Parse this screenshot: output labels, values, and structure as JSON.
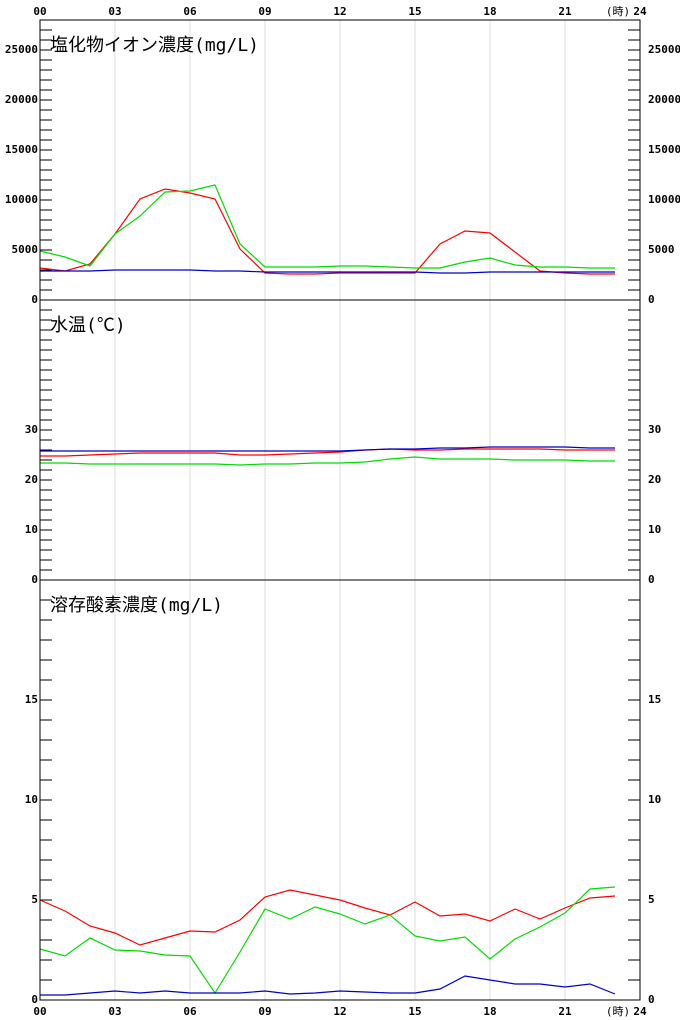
{
  "x_axis": {
    "xlim": [
      0,
      24
    ],
    "xticks": [
      {
        "value": 0,
        "label": "00"
      },
      {
        "value": 3,
        "label": "03"
      },
      {
        "value": 6,
        "label": "06"
      },
      {
        "value": 9,
        "label": "09"
      },
      {
        "value": 12,
        "label": "12"
      },
      {
        "value": 15,
        "label": "15"
      },
      {
        "value": 18,
        "label": "18"
      },
      {
        "value": 21,
        "label": "21"
      },
      {
        "value": 24,
        "label": "24"
      }
    ],
    "unit": "(時)",
    "grid": true
  },
  "chart_data": [
    {
      "type": "line",
      "title": "塩化物イオン濃度(mg/L)",
      "x": [
        0,
        1,
        2,
        3,
        4,
        5,
        6,
        7,
        8,
        9,
        10,
        11,
        12,
        13,
        14,
        15,
        16,
        17,
        18,
        19,
        20,
        21,
        22,
        23
      ],
      "ylim": [
        0,
        28000
      ],
      "yticks": [
        0,
        5000,
        10000,
        15000,
        20000,
        25000
      ],
      "minor_ytick_step": 1000,
      "series": [
        {
          "color": "#ff0000",
          "values": [
            3200,
            2900,
            3600,
            6600,
            10100,
            11100,
            10700,
            10100,
            5100,
            2700,
            2600,
            2600,
            2700,
            2700,
            2700,
            2700,
            5600,
            6900,
            6700,
            4800,
            2900,
            2700,
            2600,
            2600
          ]
        },
        {
          "color": "#00dd00",
          "values": [
            4900,
            4300,
            3400,
            6600,
            8400,
            10800,
            10900,
            11500,
            5600,
            3300,
            3300,
            3300,
            3400,
            3400,
            3300,
            3200,
            3200,
            3800,
            4200,
            3500,
            3300,
            3300,
            3200,
            3200
          ]
        },
        {
          "color": "#0000cc",
          "values": [
            2900,
            2900,
            2900,
            3000,
            3000,
            3000,
            3000,
            2900,
            2900,
            2800,
            2800,
            2800,
            2800,
            2800,
            2800,
            2800,
            2700,
            2700,
            2800,
            2800,
            2800,
            2800,
            2800,
            2800
          ]
        }
      ]
    },
    {
      "type": "line",
      "title": "水温(℃)",
      "x": [
        0,
        1,
        2,
        3,
        4,
        5,
        6,
        7,
        8,
        9,
        10,
        11,
        12,
        13,
        14,
        15,
        16,
        17,
        18,
        19,
        20,
        21,
        22,
        23
      ],
      "ylim": [
        0,
        56
      ],
      "yticks": [
        0,
        10,
        20,
        30
      ],
      "minor_ytick_step": 2,
      "series": [
        {
          "color": "#ff0000",
          "values": [
            24.8,
            24.8,
            25,
            25.2,
            25.4,
            25.4,
            25.4,
            25.4,
            25,
            25,
            25.2,
            25.4,
            25.6,
            26,
            26.2,
            26,
            26,
            26.2,
            26.2,
            26.2,
            26.2,
            26,
            26,
            26
          ]
        },
        {
          "color": "#00dd00",
          "values": [
            23.4,
            23.4,
            23.2,
            23.2,
            23.2,
            23.2,
            23.2,
            23.2,
            23,
            23.2,
            23.2,
            23.4,
            23.4,
            23.6,
            24.2,
            24.6,
            24.2,
            24.2,
            24.2,
            24,
            24,
            24,
            23.8,
            23.8
          ]
        },
        {
          "color": "#0000cc",
          "values": [
            25.8,
            25.8,
            25.8,
            25.8,
            25.8,
            25.8,
            25.8,
            25.8,
            25.8,
            25.8,
            25.8,
            25.8,
            25.8,
            26,
            26.2,
            26.2,
            26.4,
            26.4,
            26.6,
            26.6,
            26.6,
            26.6,
            26.4,
            26.4
          ]
        }
      ]
    },
    {
      "type": "line",
      "title": "溶存酸素濃度(mg/L)",
      "x": [
        0,
        1,
        2,
        3,
        4,
        5,
        6,
        7,
        8,
        9,
        10,
        11,
        12,
        13,
        14,
        15,
        16,
        17,
        18,
        19,
        20,
        21,
        22,
        23
      ],
      "ylim": [
        0,
        21
      ],
      "yticks": [
        0,
        5,
        10,
        15
      ],
      "minor_ytick_step": 1,
      "series": [
        {
          "color": "#ff0000",
          "values": [
            5.0,
            4.45,
            3.7,
            3.35,
            2.75,
            3.1,
            3.45,
            3.4,
            4.0,
            5.15,
            5.5,
            5.25,
            5.0,
            4.6,
            4.25,
            4.9,
            4.2,
            4.3,
            3.95,
            4.55,
            4.05,
            4.6,
            5.1,
            5.2
          ]
        },
        {
          "color": "#00dd00",
          "values": [
            2.55,
            2.2,
            3.1,
            2.5,
            2.45,
            2.25,
            2.2,
            0.35,
            2.4,
            4.55,
            4.05,
            4.65,
            4.3,
            3.8,
            4.25,
            3.2,
            2.95,
            3.15,
            2.05,
            3.05,
            3.65,
            4.35,
            5.55,
            5.65
          ]
        },
        {
          "color": "#0000cc",
          "values": [
            0.25,
            0.25,
            0.35,
            0.45,
            0.35,
            0.45,
            0.35,
            0.35,
            0.35,
            0.45,
            0.3,
            0.35,
            0.45,
            0.4,
            0.35,
            0.35,
            0.55,
            1.2,
            1.0,
            0.8,
            0.8,
            0.65,
            0.8,
            0.3
          ]
        }
      ]
    }
  ]
}
